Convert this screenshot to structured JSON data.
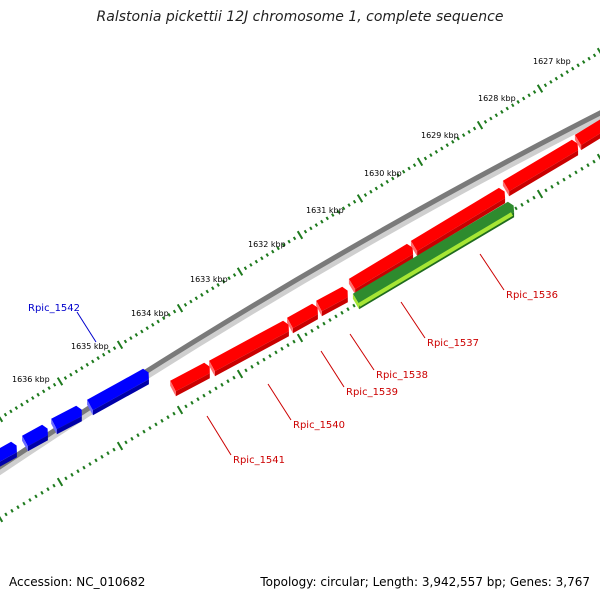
{
  "title": "Ralstonia pickettii 12J chromosome 1, complete sequence",
  "accession": "Accession: NC_010682",
  "summary": "Topology: circular; Length: 3,942,557 bp; Genes: 3,767",
  "colors": {
    "backbone": "#7a7a7a",
    "forward_gene": "#ff0000",
    "reverse_gene_blue": "#0000ff",
    "selected_gene": "#2e8b2e",
    "selected_gene_highlight": "#a6e635",
    "tick": "#1e7a1e",
    "label_red": "#cc0000",
    "label_blue": "#0000cc"
  },
  "scale": {
    "tick_labels": [
      "1627 kbp",
      "1628 kbp",
      "1629 kbp",
      "1630 kbp",
      "1631 kbp",
      "1632 kbp",
      "1633 kbp",
      "1634 kbp",
      "1635 kbp",
      "1636 kbp"
    ]
  },
  "genes": [
    {
      "name": "Rpic_1536",
      "strand": "reverse",
      "color": "green"
    },
    {
      "name": "Rpic_1537",
      "strand": "forward",
      "color": "red"
    },
    {
      "name": "Rpic_1538",
      "strand": "forward",
      "color": "red"
    },
    {
      "name": "Rpic_1539",
      "strand": "forward",
      "color": "red"
    },
    {
      "name": "Rpic_1540",
      "strand": "forward",
      "color": "red"
    },
    {
      "name": "Rpic_1541",
      "strand": "forward",
      "color": "red"
    },
    {
      "name": "Rpic_1542",
      "strand": "forward",
      "color": "blue"
    }
  ]
}
